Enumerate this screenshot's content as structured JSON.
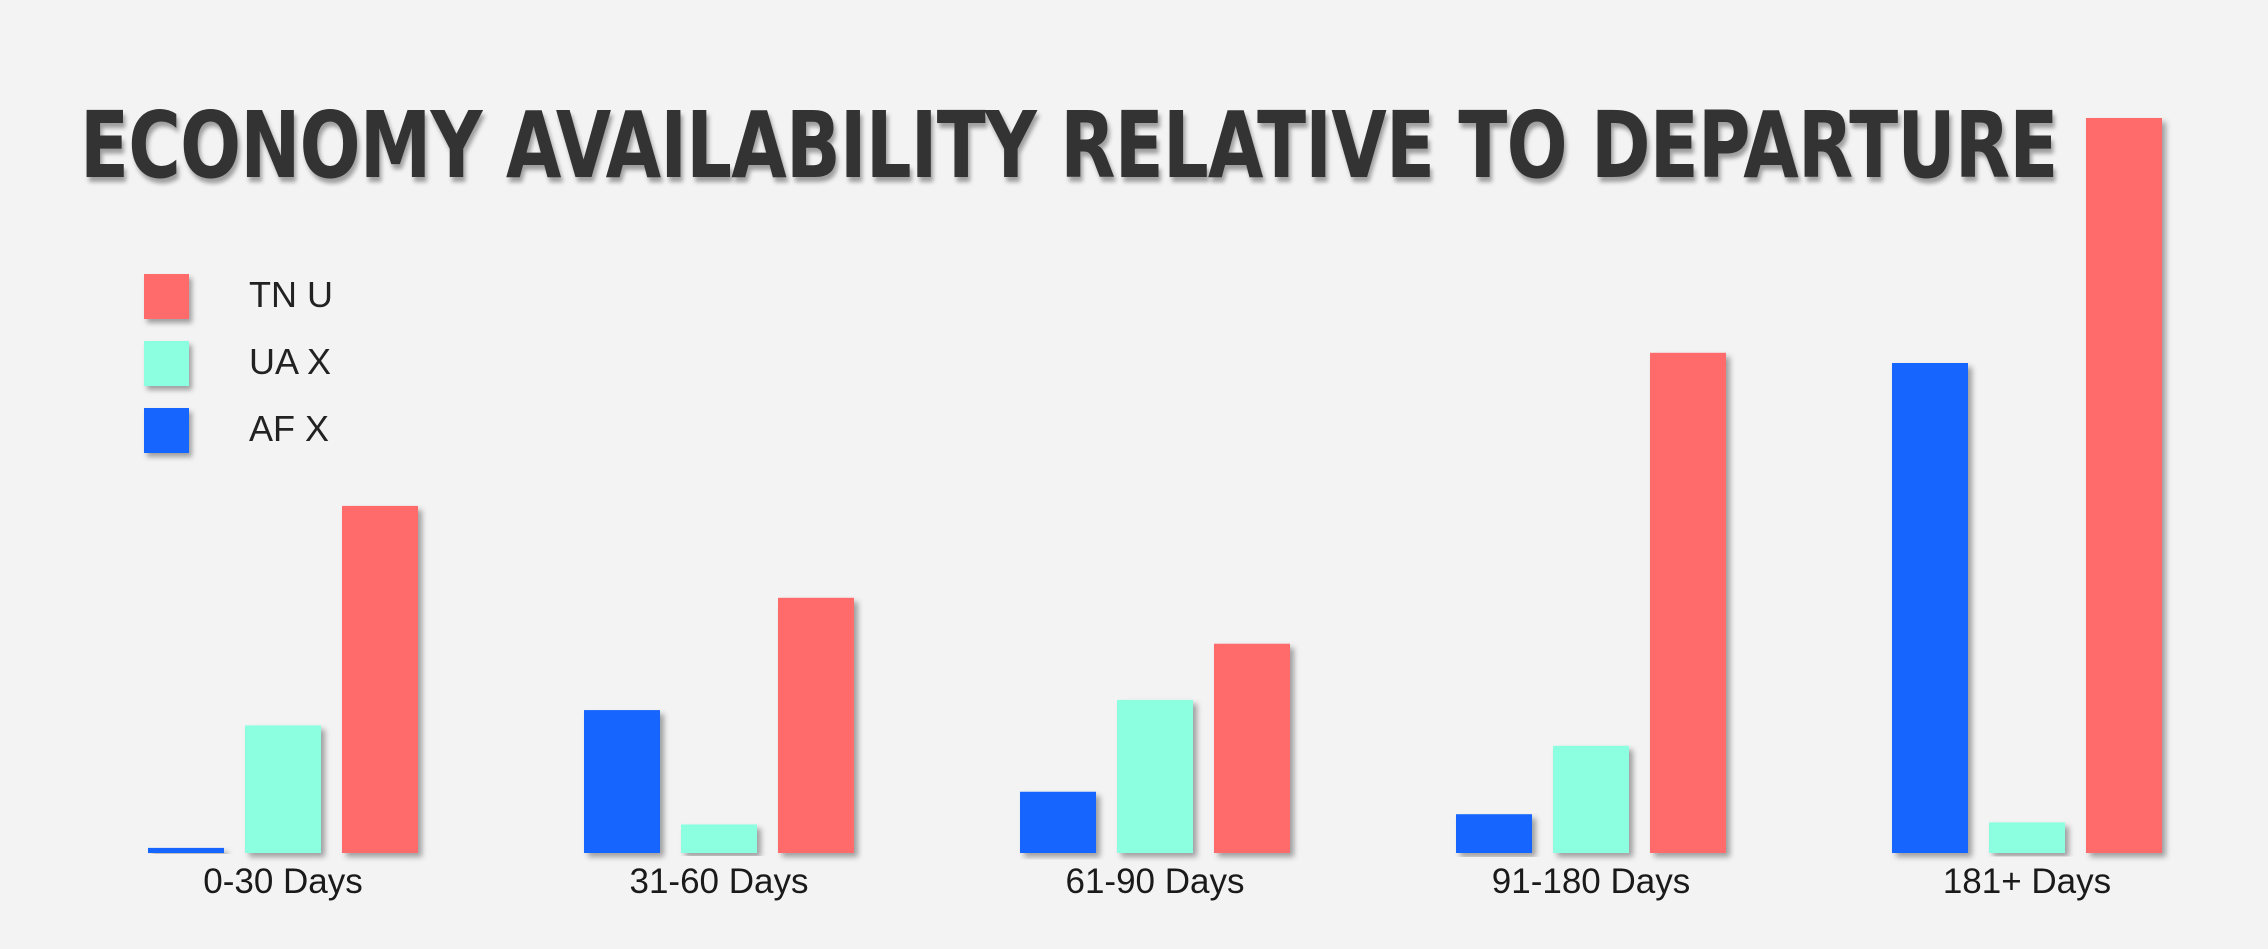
{
  "chart_data": {
    "type": "bar",
    "title": "ECONOMY AVAILABILITY RELATIVE TO DEPARTURE",
    "categories": [
      "0-30 Days",
      "31-60 Days",
      "61-90 Days",
      "91-180 Days",
      "181+ Days"
    ],
    "series": [
      {
        "name": "AF X",
        "color": "#1665ff",
        "values": [
          0.5,
          14,
          6,
          3.8,
          48
        ]
      },
      {
        "name": "UA X",
        "color": "#8bffe0",
        "values": [
          12.5,
          2.8,
          15,
          10.5,
          3
        ]
      },
      {
        "name": "TN U",
        "color": "#ff6b6b",
        "values": [
          34,
          25,
          20.5,
          49,
          72
        ]
      }
    ],
    "legend_order": [
      "TN U",
      "UA X",
      "AF X"
    ],
    "legend_position": "top-left",
    "ylim": [
      0,
      72
    ],
    "grid": false
  }
}
